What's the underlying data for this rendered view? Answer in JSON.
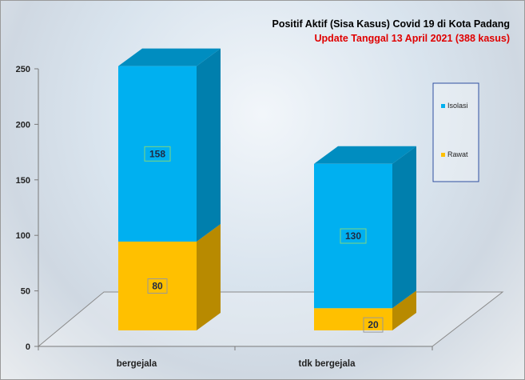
{
  "chart_data": {
    "type": "bar",
    "stacked": true,
    "three_d": true,
    "title": "Positif Aktif  (Sisa Kasus) Covid 19 di Kota Padang",
    "subtitle": "Update Tanggal 13 April 2021  (388  kasus)",
    "categories": [
      "bergejala",
      "tdk bergejala"
    ],
    "series": [
      {
        "name": "Rawat",
        "values": [
          80,
          20
        ],
        "color": "#ffc000"
      },
      {
        "name": "Isolasi",
        "values": [
          158,
          130
        ],
        "color": "#00b0f0"
      }
    ],
    "ylim": [
      0,
      250
    ],
    "yticks": [
      "0",
      "50",
      "100",
      "150",
      "200",
      "250"
    ],
    "legend": {
      "position": "right",
      "items": [
        "Isolasi",
        "Rawat"
      ]
    },
    "grid": false
  },
  "colors": {
    "title": "#000000",
    "subtitle": "#e00000",
    "legend_border": "#2f4fa0",
    "label_border_isolasi": "#7fd67f",
    "label_border_rawat": "#999999"
  }
}
